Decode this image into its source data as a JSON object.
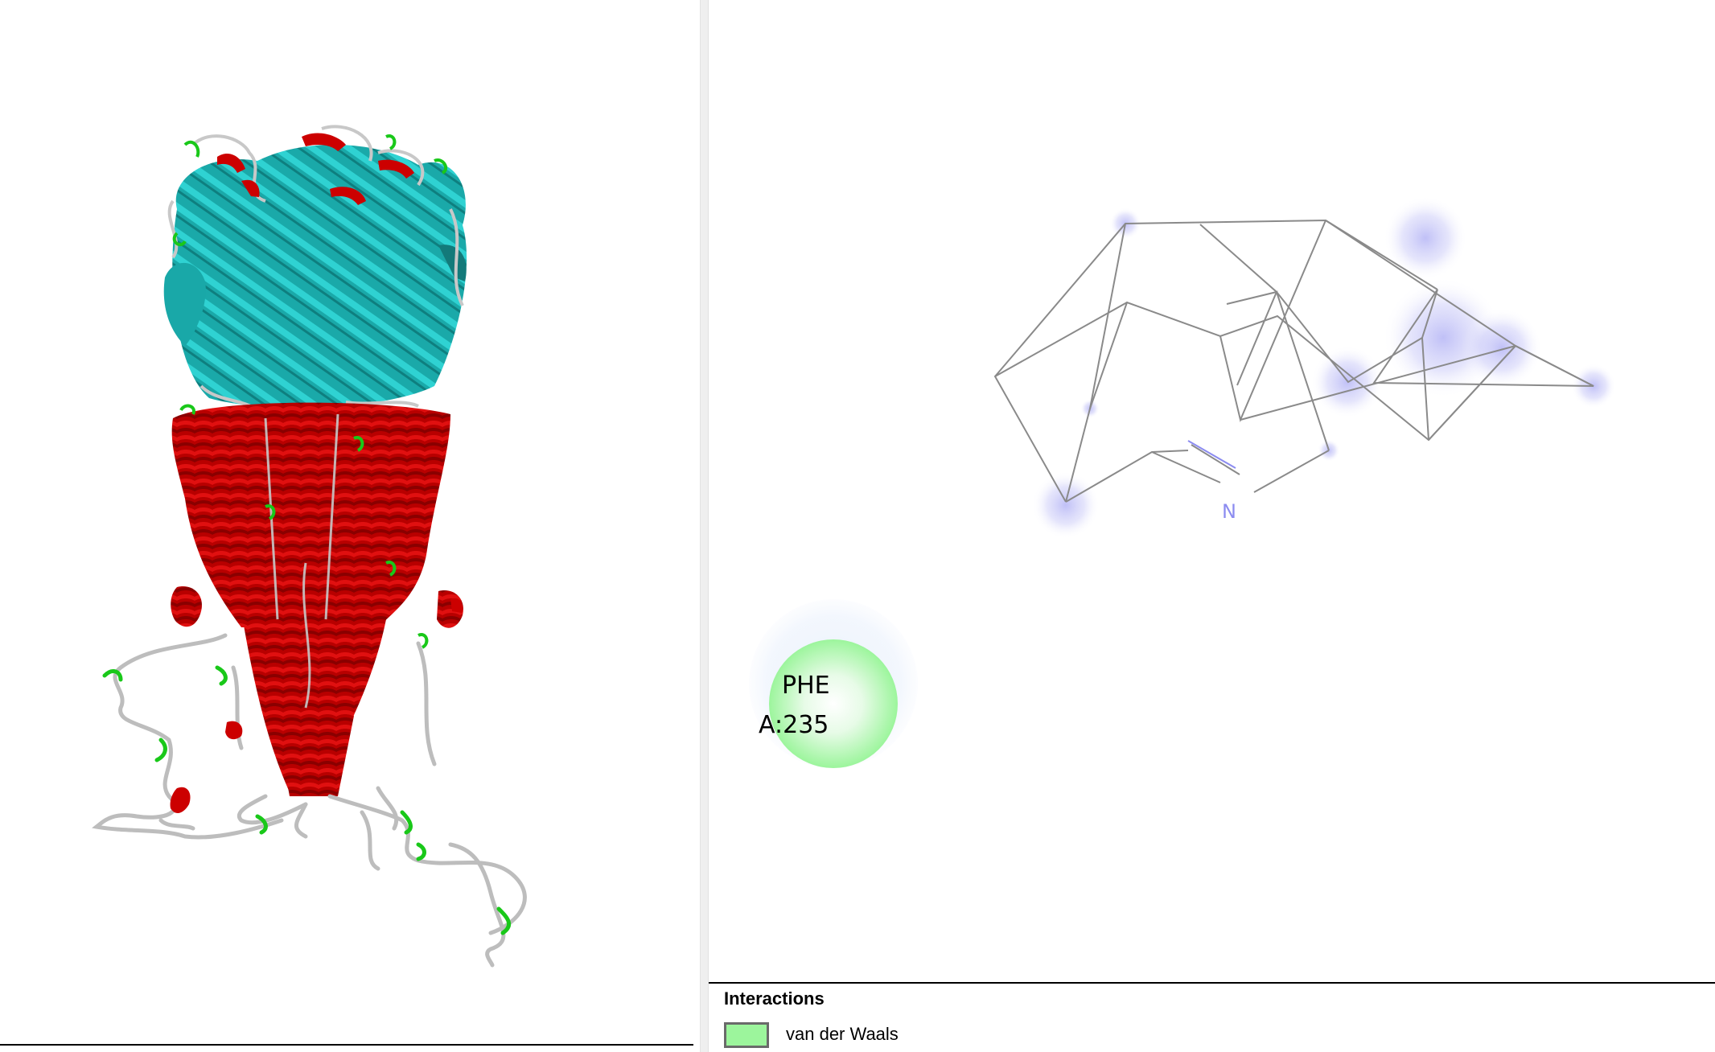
{
  "structure_viewer": {
    "colors": {
      "helix": "#cc0000",
      "sheet": "#1fbcbc",
      "coil": "#c8c8c8",
      "turn": "#19c819"
    }
  },
  "interaction_diagram": {
    "residue": {
      "name": "PHE",
      "chain_position": "A:235",
      "color": "#9cf59c"
    },
    "ligand_atom_label": "N",
    "atom_label_color": "#8c8cf0"
  },
  "legend": {
    "title": "Interactions",
    "items": [
      {
        "label": "van der Waals",
        "color": "#9cf59c"
      }
    ]
  }
}
